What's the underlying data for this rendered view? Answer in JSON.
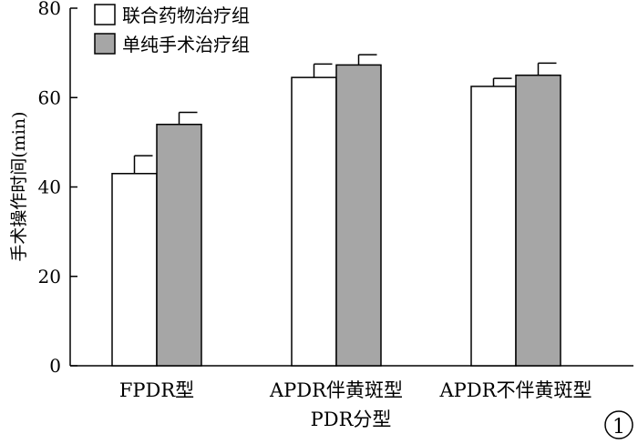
{
  "chart_data": {
    "type": "bar",
    "xlabel": "PDR分型",
    "ylabel": "手术操作时间(min)",
    "ylim": [
      0,
      80
    ],
    "yticks": [
      0,
      20,
      40,
      60,
      80
    ],
    "grid": false,
    "legend_position": "top-left",
    "categories": [
      "FPDR型",
      "APDR伴黄斑型",
      "APDR不伴黄斑型"
    ],
    "series": [
      {
        "name": "联合药物治疗组",
        "color": "#ffffff",
        "values": [
          43,
          64.5,
          62.5
        ],
        "errors": [
          4,
          3,
          1.8
        ]
      },
      {
        "name": "单纯手术治疗组",
        "color": "#a6a6a6",
        "values": [
          54,
          67.3,
          65
        ],
        "errors": [
          2.7,
          2.3,
          2.7
        ]
      }
    ],
    "panel_label": "1"
  }
}
